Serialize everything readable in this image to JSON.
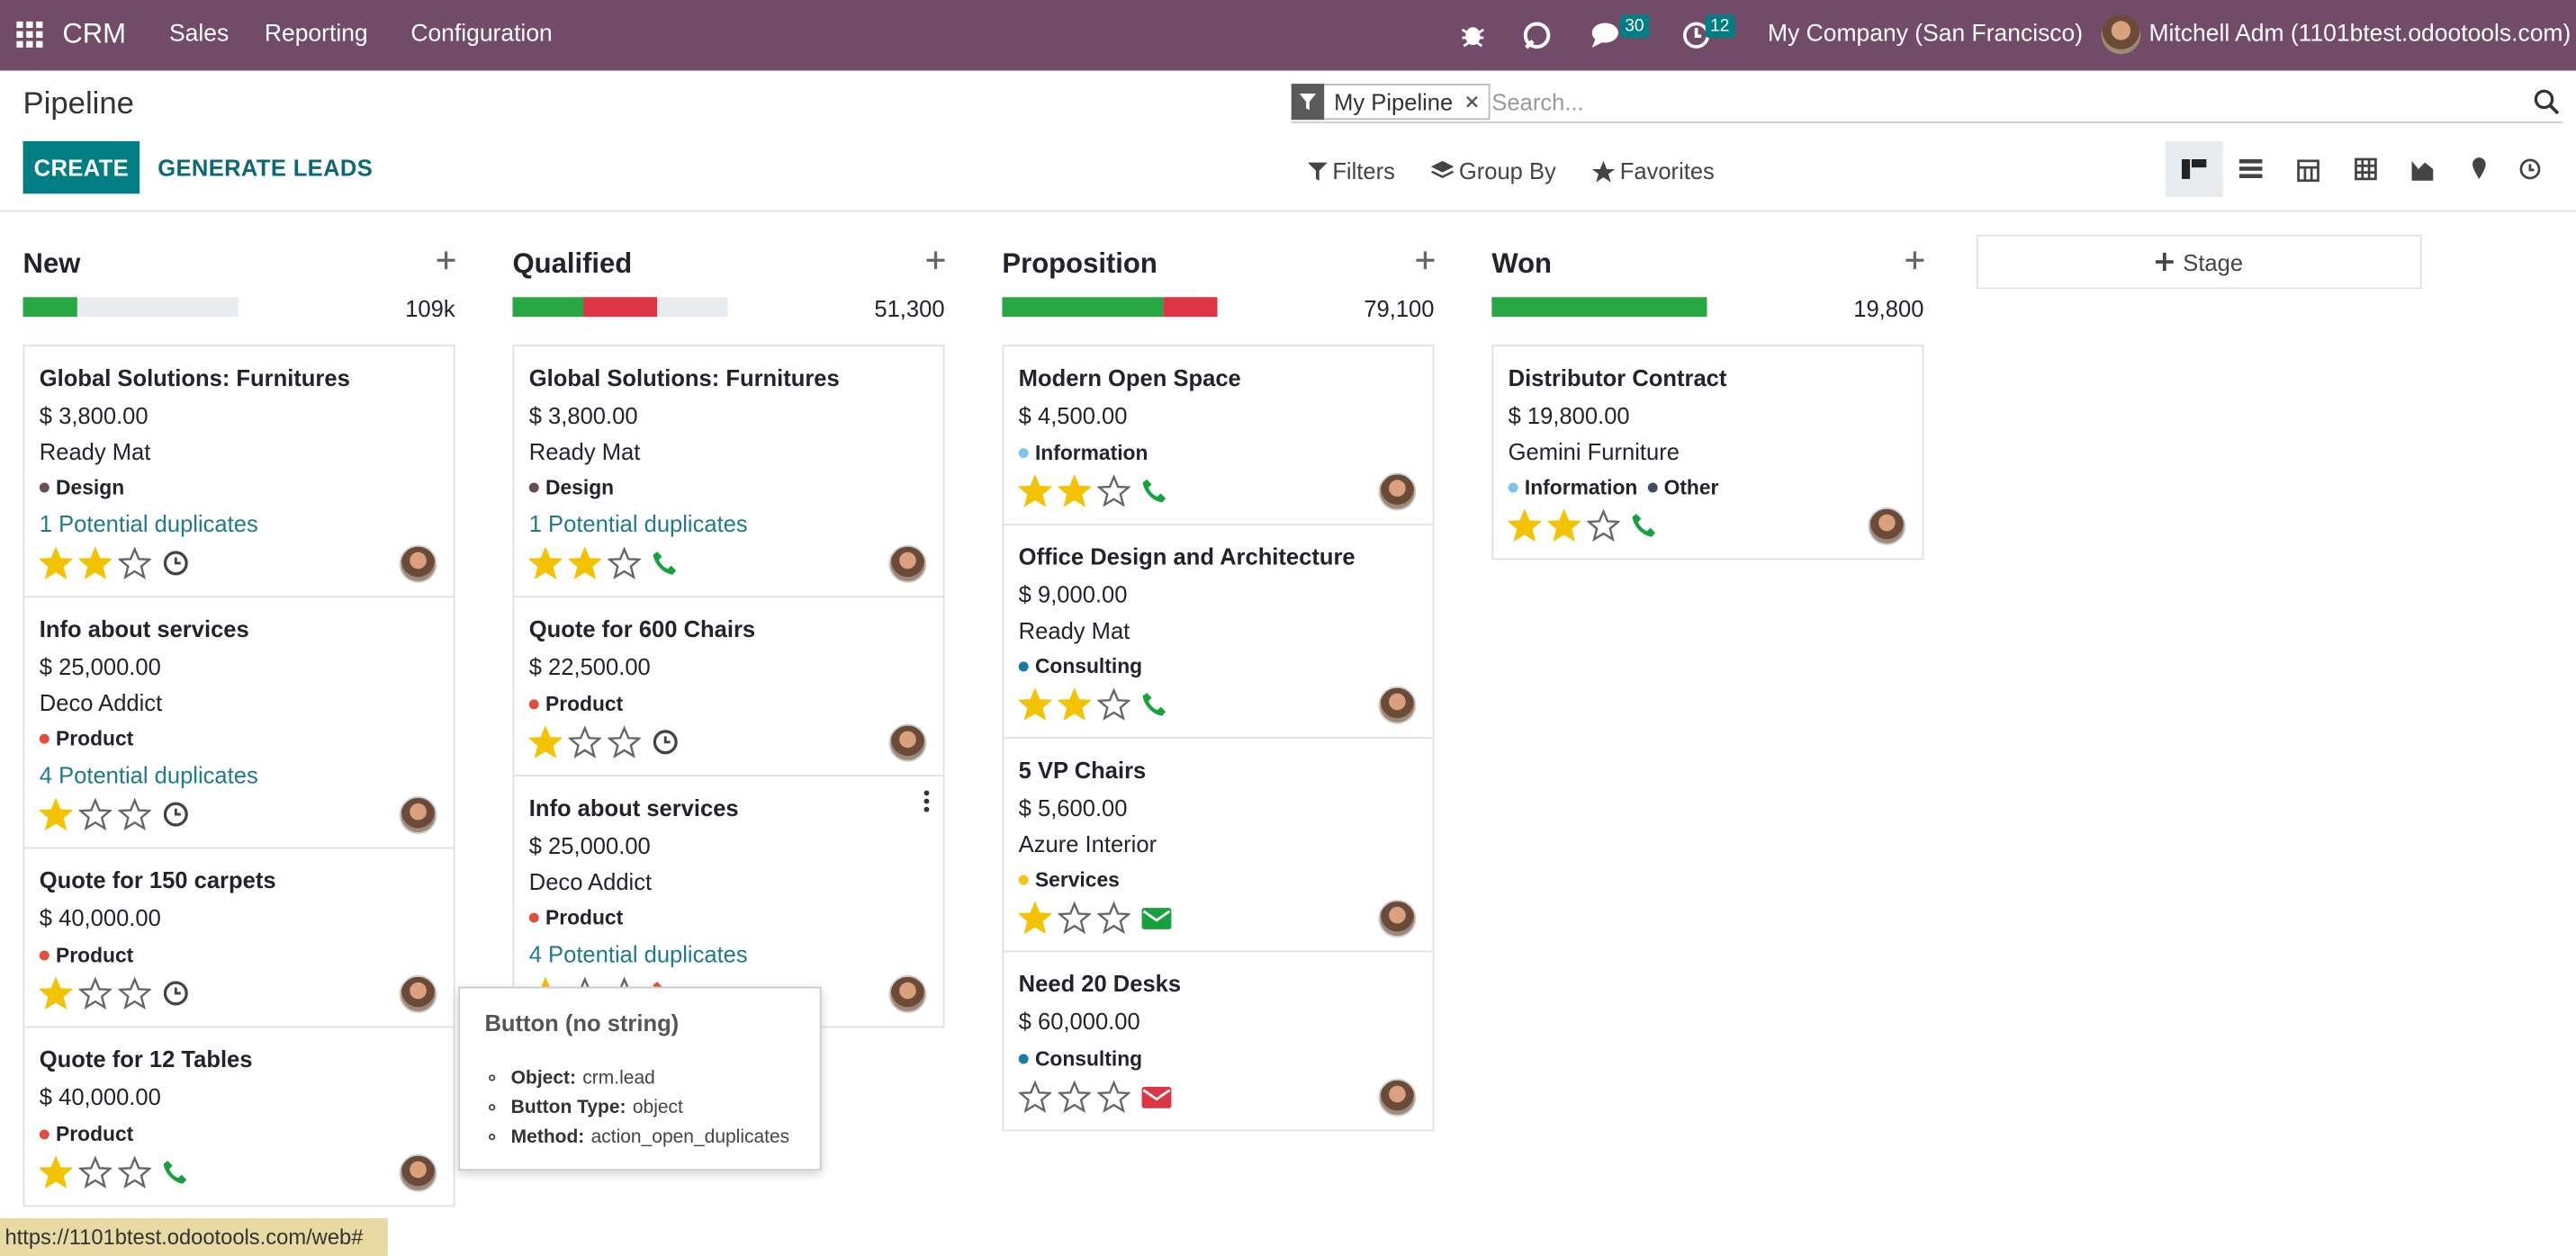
{
  "navbar": {
    "app": "CRM",
    "menu": [
      "Sales",
      "Reporting",
      "Configuration"
    ],
    "messages": 30,
    "activities": 12,
    "company": "My Company (San Francisco)",
    "user": "Mitchell Adm (1101btest.odootools.com)"
  },
  "control_panel": {
    "title": "Pipeline",
    "create": "CREATE",
    "generate": "GENERATE LEADS",
    "facet": "My Pipeline",
    "search_placeholder": "Search...",
    "filters": [
      "Filters",
      "Group By",
      "Favorites"
    ]
  },
  "columns": [
    {
      "name": "New",
      "total": "109k",
      "progress": [
        {
          "color": "#28a745",
          "value": 25
        }
      ],
      "cards": [
        {
          "title": "Global Solutions: Furnitures",
          "amount": "$ 3,800.00",
          "customer": "Ready Mat",
          "tags": [
            {
              "name": "Design",
              "color": "#6b4a5c"
            }
          ],
          "duplicates": "1 Potential duplicates",
          "stars": 2,
          "activity": "clock"
        },
        {
          "title": "Info about services",
          "amount": "$ 25,000.00",
          "customer": "Deco Addict",
          "tags": [
            {
              "name": "Product",
              "color": "#e04f3c"
            }
          ],
          "duplicates": "4 Potential duplicates",
          "stars": 1,
          "activity": "clock"
        },
        {
          "title": "Quote for 150 carpets",
          "amount": "$ 40,000.00",
          "tags": [
            {
              "name": "Product",
              "color": "#e04f3c"
            }
          ],
          "stars": 1,
          "activity": "clock"
        },
        {
          "title": "Quote for 12 Tables",
          "amount": "$ 40,000.00",
          "tags": [
            {
              "name": "Product",
              "color": "#e04f3c"
            }
          ],
          "stars": 1,
          "activity": "phone"
        }
      ]
    },
    {
      "name": "Qualified",
      "total": "51,300",
      "progress": [
        {
          "color": "#28a745",
          "value": 33
        },
        {
          "color": "#dc3545",
          "value": 34
        }
      ],
      "cards": [
        {
          "title": "Global Solutions: Furnitures",
          "amount": "$ 3,800.00",
          "customer": "Ready Mat",
          "tags": [
            {
              "name": "Design",
              "color": "#6b4a5c"
            }
          ],
          "duplicates": "1 Potential duplicates",
          "stars": 2,
          "activity": "phone"
        },
        {
          "title": "Quote for 600 Chairs",
          "amount": "$ 22,500.00",
          "tags": [
            {
              "name": "Product",
              "color": "#e04f3c"
            }
          ],
          "stars": 1,
          "activity": "clock"
        },
        {
          "title": "Info about services",
          "amount": "$ 25,000.00",
          "customer": "Deco Addict",
          "tags": [
            {
              "name": "Product",
              "color": "#e04f3c"
            }
          ],
          "duplicates": "4 Potential duplicates",
          "stars": 1,
          "activity": "phone-danger",
          "hover_menu": true
        }
      ]
    },
    {
      "name": "Proposition",
      "total": "79,100",
      "progress": [
        {
          "color": "#28a745",
          "value": 75
        },
        {
          "color": "#dc3545",
          "value": 25
        }
      ],
      "cards": [
        {
          "title": "Modern Open Space",
          "amount": "$ 4,500.00",
          "tags": [
            {
              "name": "Information",
              "color": "#7ec3ec"
            }
          ],
          "stars": 2,
          "activity": "phone"
        },
        {
          "title": "Office Design and Architecture",
          "amount": "$ 9,000.00",
          "customer": "Ready Mat",
          "tags": [
            {
              "name": "Consulting",
              "color": "#1a7ba3"
            }
          ],
          "stars": 2,
          "activity": "phone"
        },
        {
          "title": "5 VP Chairs",
          "amount": "$ 5,600.00",
          "customer": "Azure Interior",
          "tags": [
            {
              "name": "Services",
              "color": "#f0c419"
            }
          ],
          "stars": 1,
          "activity": "envelope"
        },
        {
          "title": "Need 20 Desks",
          "amount": "$ 60,000.00",
          "tags": [
            {
              "name": "Consulting",
              "color": "#1a7ba3"
            }
          ],
          "stars": 0,
          "activity": "envelope-danger"
        }
      ]
    },
    {
      "name": "Won",
      "total": "19,800",
      "progress": [
        {
          "color": "#28a745",
          "value": 100
        }
      ],
      "cards": [
        {
          "title": "Distributor Contract",
          "amount": "$ 19,800.00",
          "customer": "Gemini Furniture",
          "tags": [
            {
              "name": "Information",
              "color": "#7ec3ec"
            },
            {
              "name": "Other",
              "color": "#3d4e61"
            }
          ],
          "stars": 2,
          "activity": "phone"
        }
      ]
    }
  ],
  "add_stage": "Stage",
  "tooltip": {
    "title": "Button (no string)",
    "items": [
      {
        "label": "Object:",
        "value": "crm.lead"
      },
      {
        "label": "Button Type:",
        "value": "object"
      },
      {
        "label": "Method:",
        "value": "action_open_duplicates"
      }
    ]
  },
  "status_url": "https://1101btest.odootools.com/web#"
}
